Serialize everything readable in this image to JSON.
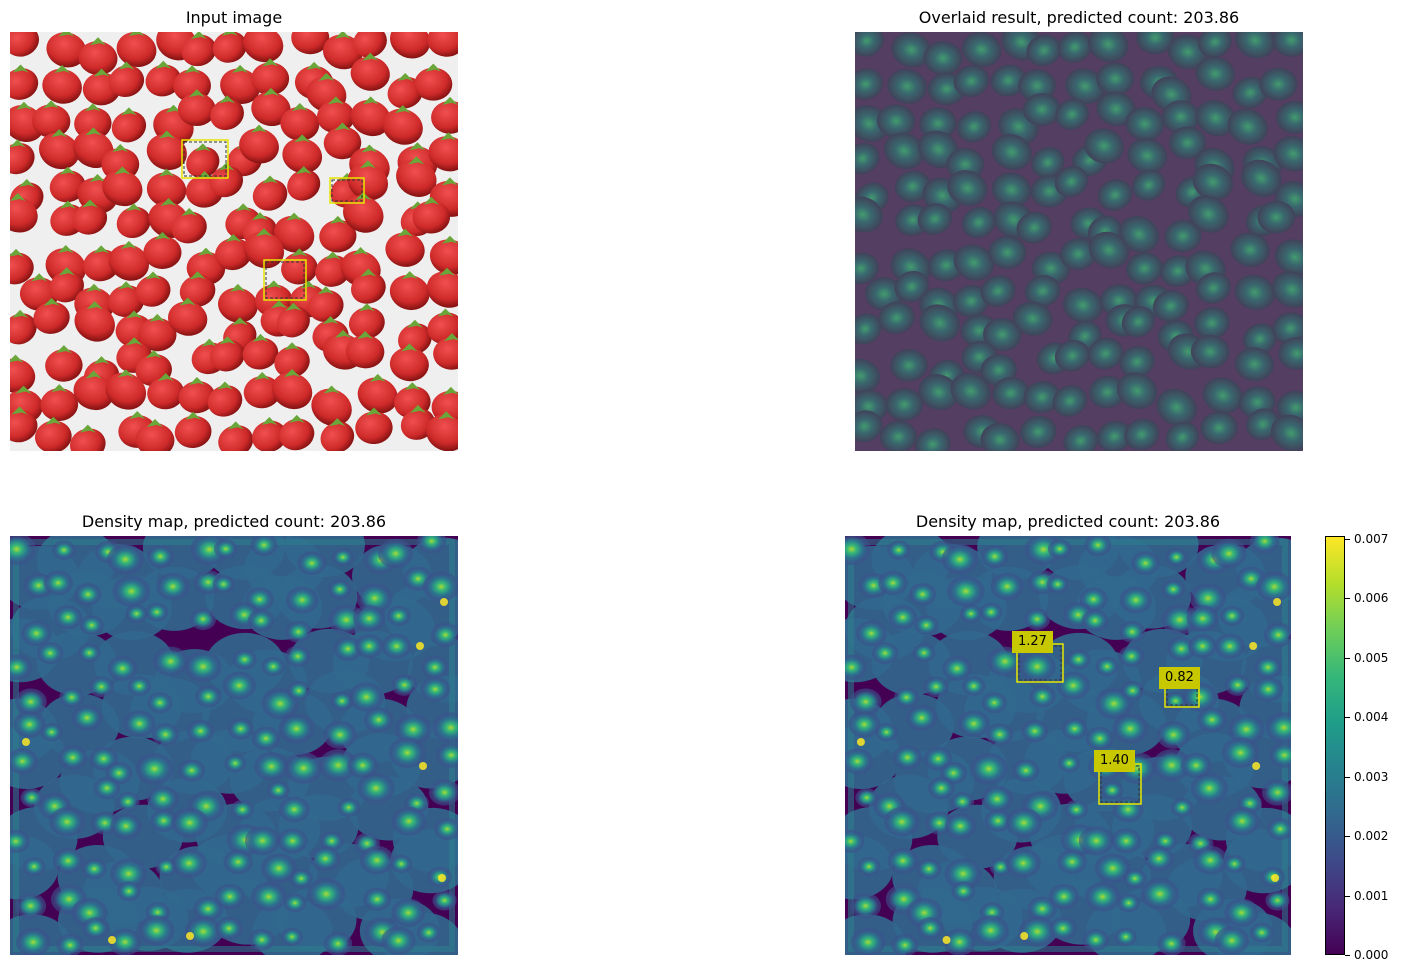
{
  "panels": {
    "input": {
      "title": "Input image"
    },
    "overlay": {
      "title": "Overlaid result, predicted count: 203.86"
    },
    "density_left": {
      "title": "Density map, predicted count: 203.86"
    },
    "density_right": {
      "title": "Density map, predicted count: 203.86"
    }
  },
  "exemplar_counts": [
    "1.27",
    "0.82",
    "1.40"
  ],
  "colorbar": {
    "ticks": [
      "0.000",
      "0.001",
      "0.002",
      "0.003",
      "0.004",
      "0.005",
      "0.006",
      "0.007"
    ],
    "max_value": 0.00705,
    "colormap": [
      "#440154",
      "#482878",
      "#3e4989",
      "#31688e",
      "#26828e",
      "#1f9e89",
      "#35b779",
      "#6ece58",
      "#b5de2b",
      "#fde725"
    ]
  },
  "colors": {
    "box": "#e6e600",
    "label_bg": "#c8c800",
    "strawberry": "#cf2a2a",
    "background": "#efefef"
  }
}
